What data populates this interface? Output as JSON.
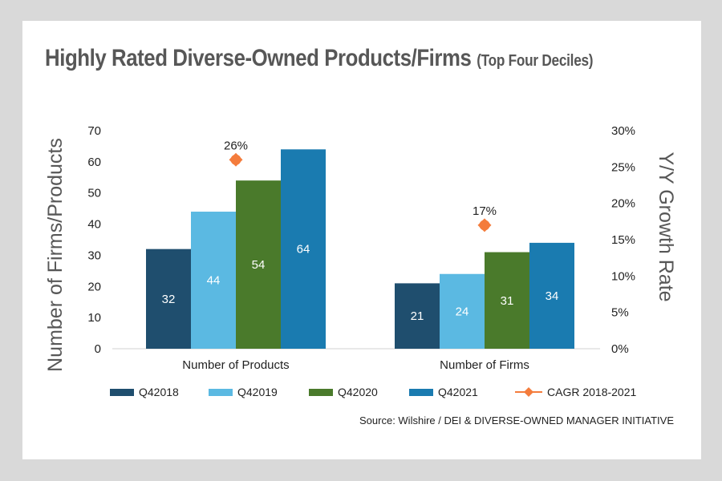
{
  "title": "Highly Rated Diverse-Owned Products/Firms",
  "subtitle": "(Top Four Deciles)",
  "source": "Source:  Wilshire / DEI & DIVERSE-OWNED MANAGER INITIATIVE",
  "chart_data": {
    "type": "bar",
    "categories": [
      "Number of Products",
      "Number of Firms"
    ],
    "series": [
      {
        "name": "Q42018",
        "values": [
          32,
          21
        ],
        "color": "#1f4e6e"
      },
      {
        "name": "Q42019",
        "values": [
          44,
          24
        ],
        "color": "#5bb9e2"
      },
      {
        "name": "Q42020",
        "values": [
          54,
          31
        ],
        "color": "#4a7a2b"
      },
      {
        "name": "Q42021",
        "values": [
          64,
          34
        ],
        "color": "#1a7bb0"
      }
    ],
    "line_series": {
      "name": "CAGR 2018-2021",
      "values": [
        26,
        17
      ],
      "labels": [
        "26%",
        "17%"
      ],
      "color": "#f47c3c",
      "axis": "right"
    },
    "ylabel": "Number of Firms/Products",
    "y2label": "Y/Y Growth Rate",
    "ylim": [
      0,
      70
    ],
    "yticks": [
      "0",
      "10",
      "20",
      "30",
      "40",
      "50",
      "60",
      "70"
    ],
    "y2lim": [
      0,
      30
    ],
    "y2ticks": [
      "0%",
      "5%",
      "10%",
      "15%",
      "20%",
      "25%",
      "30%"
    ],
    "legend_position": "bottom"
  }
}
